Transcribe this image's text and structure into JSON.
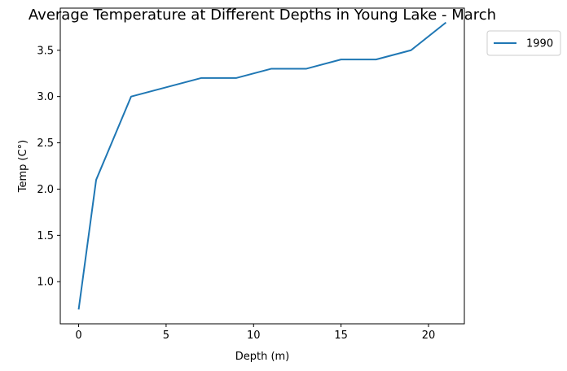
{
  "chart_data": {
    "type": "line",
    "title": "Average Temperature at Different Depths in Young Lake - March",
    "xlabel": "Depth (m)",
    "ylabel": "Temp (C°)",
    "xlim": [
      -1.05,
      22.05
    ],
    "ylim": [
      0.545,
      3.955
    ],
    "xticks": [
      0,
      5,
      10,
      15,
      20
    ],
    "yticks": [
      1.0,
      1.5,
      2.0,
      2.5,
      3.0,
      3.5
    ],
    "xtick_labels": [
      "0",
      "5",
      "10",
      "15",
      "20"
    ],
    "ytick_labels": [
      "1.0",
      "1.5",
      "2.0",
      "2.5",
      "3.0",
      "3.5"
    ],
    "grid": false,
    "legend_position": "outside upper right",
    "series": [
      {
        "name": "1990",
        "color": "#1f77b4",
        "x": [
          0,
          1,
          3,
          5,
          7,
          9,
          11,
          13,
          15,
          17,
          19,
          21
        ],
        "y": [
          0.7,
          2.1,
          3.0,
          3.1,
          3.2,
          3.2,
          3.3,
          3.3,
          3.4,
          3.4,
          3.5,
          3.8
        ]
      }
    ]
  }
}
